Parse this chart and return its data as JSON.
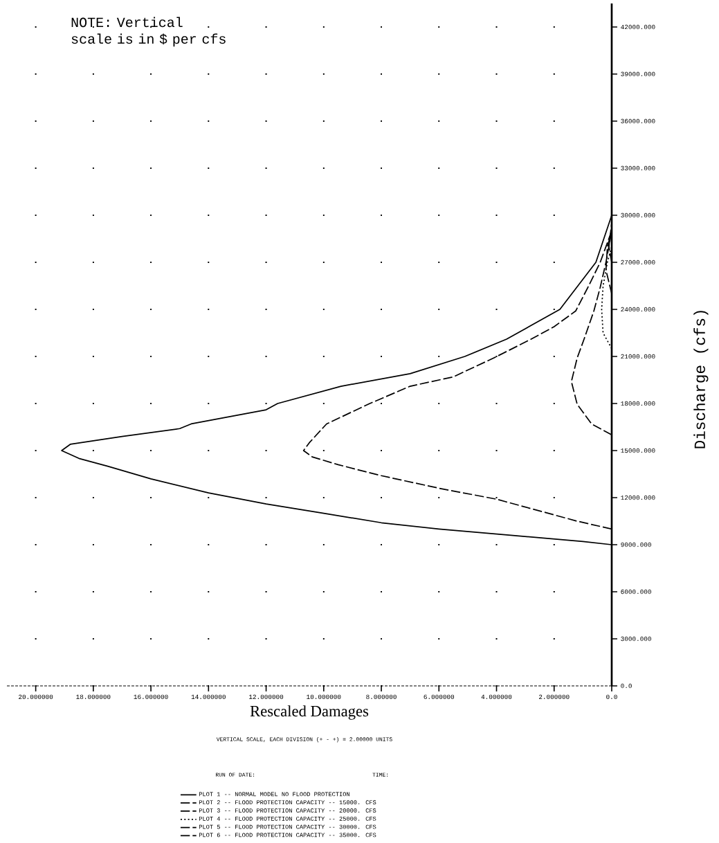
{
  "chart_data": {
    "type": "line",
    "xlabel": "Rescaled Damages",
    "ylabel": "Discharge (cfs)",
    "xlim": [
      21,
      0
    ],
    "ylim": [
      0,
      43500
    ],
    "xticks": [
      {
        "value": 0,
        "label": "0.0"
      },
      {
        "value": 2,
        "label": "2.000000"
      },
      {
        "value": 4,
        "label": "4.000000"
      },
      {
        "value": 6,
        "label": "6.000000"
      },
      {
        "value": 8,
        "label": "8.000000"
      },
      {
        "value": 10,
        "label": "10.000000"
      },
      {
        "value": 12,
        "label": "12.000000"
      },
      {
        "value": 14,
        "label": "14.000000"
      },
      {
        "value": 16,
        "label": "16.000000"
      },
      {
        "value": 18,
        "label": "18.000000"
      },
      {
        "value": 20,
        "label": "20.000000"
      }
    ],
    "yticks": [
      {
        "value": 0,
        "label": "0.0"
      },
      {
        "value": 3000,
        "label": "3000.000"
      },
      {
        "value": 6000,
        "label": "6000.000"
      },
      {
        "value": 9000,
        "label": "9000.000"
      },
      {
        "value": 12000,
        "label": "12000.000"
      },
      {
        "value": 15000,
        "label": "15000.000"
      },
      {
        "value": 18000,
        "label": "18000.000"
      },
      {
        "value": 21000,
        "label": "21000.000"
      },
      {
        "value": 24000,
        "label": "24000.000"
      },
      {
        "value": 27000,
        "label": "27000.000"
      },
      {
        "value": 30000,
        "label": "30000.000"
      },
      {
        "value": 33000,
        "label": "33000.000"
      },
      {
        "value": 36000,
        "label": "36000.000"
      },
      {
        "value": 39000,
        "label": "39000.000"
      },
      {
        "value": 42000,
        "label": "42000.000"
      }
    ],
    "grid": true,
    "legend": "bottom",
    "marker": "none",
    "annotations": [
      "NOTE: Vertical scale is in $ per cfs",
      "VERTICAL SCALE, EACH DIVISION (+ - +) = 2.00000 UNITS",
      "RUN OF DATE:",
      "TIME:"
    ],
    "series": [
      {
        "name": "PLOT 1 -- NORMAL MODEL NO FLOOD PROTECTION",
        "color": "#000000",
        "line_style": "solid",
        "x": [
          0,
          1.0,
          3.5,
          6,
          8,
          10,
          12,
          14,
          16,
          17.5,
          18.5,
          19.1,
          18.8,
          17,
          15,
          14.6,
          12,
          11.6,
          9.4,
          7,
          5.1,
          3.65,
          1.8,
          0.55,
          0
        ],
        "values": [
          9000,
          9200,
          9600,
          10000,
          10400,
          11000,
          11600,
          12300,
          13200,
          14000,
          14500,
          15000,
          15400,
          15900,
          16400,
          16700,
          17600,
          18000,
          19100,
          19900,
          21000,
          22100,
          24000,
          27000,
          30000
        ]
      },
      {
        "name": "PLOT 2 -- FLOOD PROTECTION CAPACITY -- 15000. CFS",
        "color": "#000000",
        "line_style": "dashed",
        "x": [
          0,
          1.2,
          4,
          6,
          8,
          9.5,
          10.4,
          10.7,
          10.5,
          9.9,
          8.4,
          7.0,
          5.5,
          4.1,
          2.8,
          2.0,
          1.25,
          0.8,
          0.4,
          0
        ],
        "values": [
          10000,
          10500,
          11900,
          12600,
          13400,
          14100,
          14600,
          15000,
          15500,
          16700,
          18000,
          19100,
          19700,
          20900,
          22100,
          22900,
          23900,
          25500,
          27000,
          29000
        ]
      },
      {
        "name": "PLOT 3 -- FLOOD PROTECTION CAPACITY -- 20000. CFS",
        "color": "#000000",
        "line_style": "dashed",
        "x": [
          0,
          0.7,
          1.2,
          1.4,
          1.2,
          0.96,
          0.62,
          0.4,
          0.2,
          0
        ],
        "values": [
          16000,
          16700,
          17950,
          19400,
          20900,
          22100,
          23900,
          25400,
          27000,
          29000
        ]
      },
      {
        "name": "PLOT 4 -- FLOOD PROTECTION CAPACITY -- 25000. CFS",
        "color": "#000000",
        "line_style": "dotted",
        "x": [
          0,
          0.3,
          0.35,
          0.3,
          0.15,
          0
        ],
        "values": [
          21500,
          22500,
          24000,
          25500,
          27000,
          28000
        ]
      },
      {
        "name": "PLOT 5 -- FLOOD PROTECTION CAPACITY -- 30000. CFS",
        "color": "#000000",
        "line_style": "dashed",
        "x": [
          0,
          0.2,
          0.15,
          0
        ],
        "values": [
          25000,
          26500,
          28000,
          29000
        ]
      },
      {
        "name": "PLOT 6 -- FLOOD PROTECTION CAPACITY -- 35000. CFS",
        "color": "#000000",
        "line_style": "dashed",
        "x": [
          0,
          0.1,
          0
        ],
        "values": [
          27000,
          28000,
          29500
        ]
      }
    ]
  }
}
